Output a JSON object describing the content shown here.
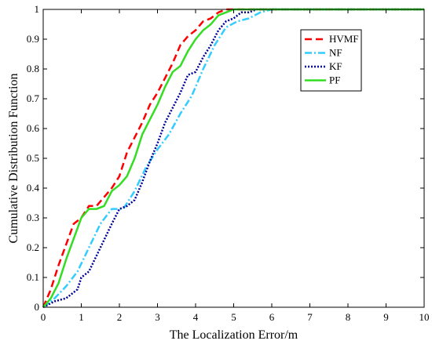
{
  "chart_data": {
    "type": "line",
    "title": "",
    "xlabel": "The Localization Error/m",
    "ylabel": "Cumulative Distribution Function",
    "xlim": [
      0,
      10
    ],
    "ylim": [
      0,
      1
    ],
    "xticks": [
      "0",
      "1",
      "2",
      "3",
      "4",
      "5",
      "6",
      "7",
      "8",
      "9",
      "10"
    ],
    "yticks": [
      "0",
      "0.1",
      "0.2",
      "0.3",
      "0.4",
      "0.5",
      "0.6",
      "0.7",
      "0.8",
      "0.9",
      "1"
    ],
    "grid": false,
    "legend_position": "top-right",
    "series": [
      {
        "name": "HVMF",
        "color": "#ff0000",
        "dash": "dashed",
        "x": [
          0,
          0.2,
          0.4,
          0.6,
          0.8,
          1.0,
          1.2,
          1.4,
          1.6,
          1.8,
          2.0,
          2.2,
          2.4,
          2.6,
          2.8,
          3.0,
          3.2,
          3.4,
          3.6,
          3.8,
          4.0,
          4.2,
          4.4,
          4.6,
          4.8,
          5.0,
          10
        ],
        "y": [
          0,
          0.06,
          0.14,
          0.21,
          0.28,
          0.3,
          0.34,
          0.34,
          0.37,
          0.4,
          0.44,
          0.52,
          0.57,
          0.62,
          0.68,
          0.72,
          0.77,
          0.82,
          0.88,
          0.91,
          0.93,
          0.96,
          0.97,
          0.99,
          1.0,
          1.0,
          1.0
        ]
      },
      {
        "name": "NF",
        "color": "#33ccff",
        "dash": "dashdot",
        "x": [
          0,
          0.3,
          0.6,
          0.9,
          1.2,
          1.5,
          1.8,
          2.1,
          2.4,
          2.7,
          3.0,
          3.3,
          3.6,
          3.9,
          4.2,
          4.5,
          4.8,
          5.1,
          5.4,
          5.7,
          6.0,
          10
        ],
        "y": [
          0,
          0.03,
          0.07,
          0.12,
          0.2,
          0.28,
          0.33,
          0.33,
          0.39,
          0.47,
          0.53,
          0.58,
          0.65,
          0.71,
          0.8,
          0.88,
          0.94,
          0.96,
          0.97,
          0.99,
          1.0,
          1.0
        ]
      },
      {
        "name": "KF",
        "color": "#000099",
        "dash": "dotted",
        "x": [
          0,
          0.3,
          0.6,
          0.9,
          1.0,
          1.2,
          1.5,
          1.8,
          2.0,
          2.2,
          2.4,
          2.6,
          2.8,
          3.0,
          3.2,
          3.4,
          3.6,
          3.8,
          4.0,
          4.2,
          4.4,
          4.6,
          4.8,
          5.0,
          5.2,
          5.4,
          5.6,
          10
        ],
        "y": [
          0,
          0.02,
          0.03,
          0.06,
          0.1,
          0.12,
          0.2,
          0.28,
          0.33,
          0.34,
          0.36,
          0.42,
          0.49,
          0.55,
          0.62,
          0.67,
          0.72,
          0.78,
          0.79,
          0.84,
          0.88,
          0.93,
          0.96,
          0.97,
          0.99,
          0.99,
          1.0,
          1.0
        ]
      },
      {
        "name": "PF",
        "color": "#33dd22",
        "dash": "solid",
        "x": [
          0,
          0.2,
          0.4,
          0.6,
          0.8,
          1.0,
          1.2,
          1.4,
          1.6,
          1.8,
          2.0,
          2.2,
          2.4,
          2.6,
          2.8,
          3.0,
          3.2,
          3.4,
          3.6,
          3.8,
          4.0,
          4.2,
          4.4,
          4.6,
          4.8,
          5.0,
          10
        ],
        "y": [
          0,
          0.03,
          0.08,
          0.16,
          0.23,
          0.3,
          0.33,
          0.33,
          0.34,
          0.39,
          0.41,
          0.44,
          0.5,
          0.58,
          0.63,
          0.68,
          0.74,
          0.79,
          0.81,
          0.86,
          0.9,
          0.93,
          0.95,
          0.98,
          0.99,
          1.0,
          1.0
        ]
      }
    ]
  }
}
